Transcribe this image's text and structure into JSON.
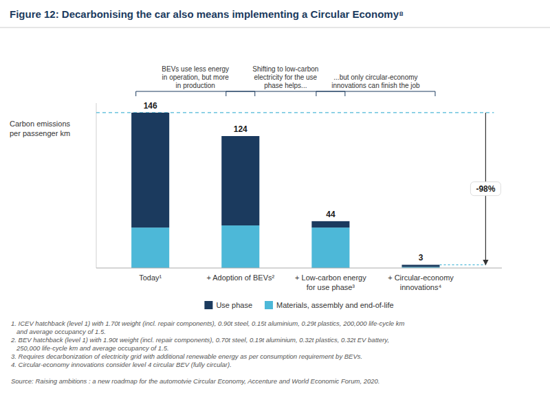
{
  "chart_data": {
    "type": "bar",
    "stacked": true,
    "title": "Figure 12: Decarbonising the car also means implementing a Circular Economy⁸",
    "categories": [
      "Today¹",
      "+ Adoption of BEVs²",
      "+ Low-carbon energy\nfor use phase³",
      "+ Circular-economy\ninnovations⁴"
    ],
    "series": [
      {
        "name": "Materials, assembly and end-of-life",
        "color": "#4db8d8",
        "values": [
          38,
          40,
          38,
          1
        ]
      },
      {
        "name": "Use phase",
        "color": "#1b3a5e",
        "values": [
          108,
          84,
          6,
          2
        ]
      }
    ],
    "totals": [
      146,
      124,
      44,
      3
    ],
    "ylabel": "Carbon emissions\nper passenger km",
    "ylim": [
      0,
      155
    ],
    "tick_labels": "x",
    "grid": false,
    "legend": "bottom",
    "change_label": "-98%",
    "annotations": [
      "BEVs use less energy\nin operation, but more\nin production",
      "Shifting to low-carbon\nelectricity for the use\nphase helps...",
      "...but only circular-economy\ninnovations can finish the job"
    ],
    "footnotes": [
      "1. ICEV hatchback (level 1) with 1.70t weight (incl. repair components), 0.90t steel, 0.15t aluminium, 0.29t plastics, 200,000 life-cycle km",
      "   and average occupancy of 1.5.",
      "2. BEV hatchback (level 1) with 1.90t weight (incl. repair components), 0.70t steel, 0.19t aluminium, 0.32t plastics, 0.32t EV battery,",
      "   250,000 life-cycle km and average occupancy of 1.5.",
      "3. Requires decarbonization of electricity grid with additional renewable energy as per consumption requirement by BEVs.",
      "4. Circular-economy innovations consider level 4 circular BEV (fully circular)."
    ],
    "source": "Source: Raising ambitions : a new roadmap for the automotvie Circular Economy, Accenture and World Economic Forum, 2020."
  }
}
